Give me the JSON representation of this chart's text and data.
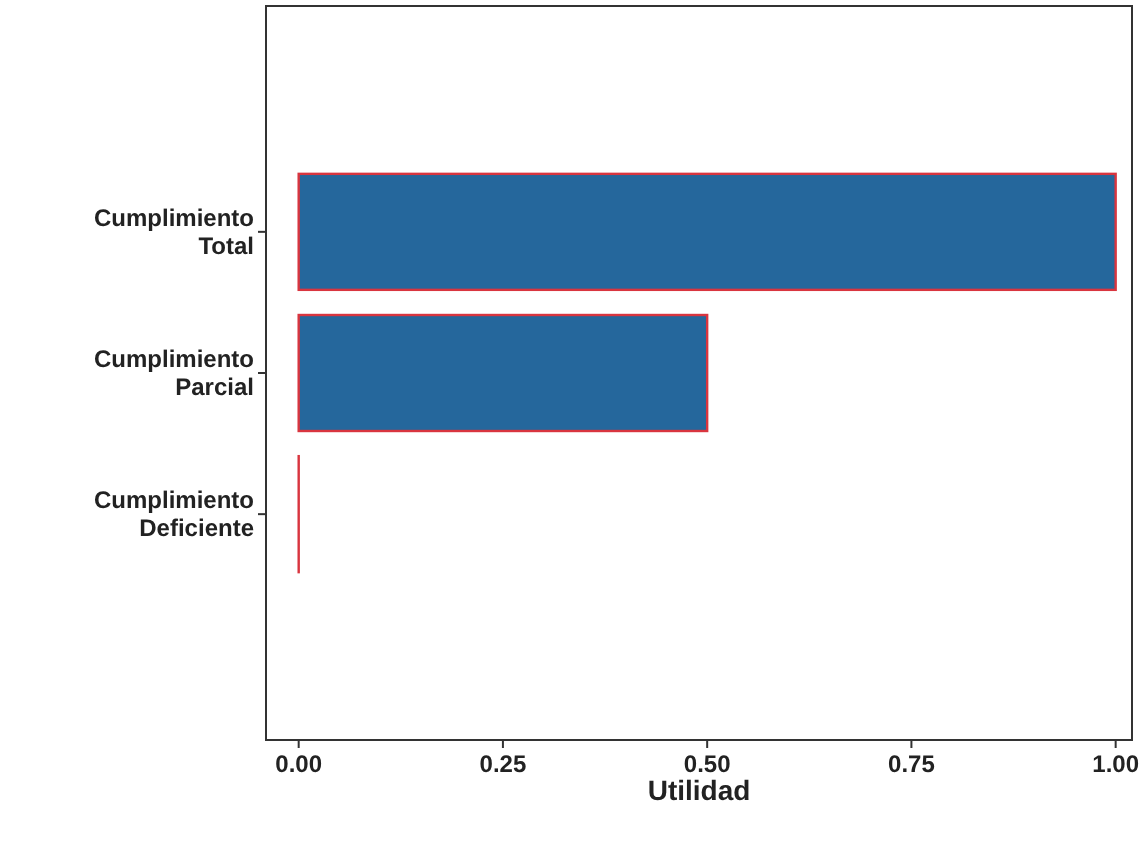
{
  "chart_data": {
    "type": "bar",
    "orientation": "horizontal",
    "categories": [
      "Cumplimiento Total",
      "Cumplimiento Parcial",
      "Cumplimiento Deficiente"
    ],
    "values": [
      1.0,
      0.5,
      0
    ],
    "color": "#25679c",
    "xlabel": "Utilidad",
    "xlim": [
      -0.04,
      1.02
    ],
    "xticks": [
      {
        "value": 0,
        "label": "0.00"
      },
      {
        "value": 0.25,
        "label": "0.25"
      },
      {
        "value": 0.5,
        "label": "0.50"
      },
      {
        "value": 0.75,
        "label": "0.75"
      },
      {
        "value": 1,
        "label": "1.00"
      }
    ],
    "grid": false
  }
}
